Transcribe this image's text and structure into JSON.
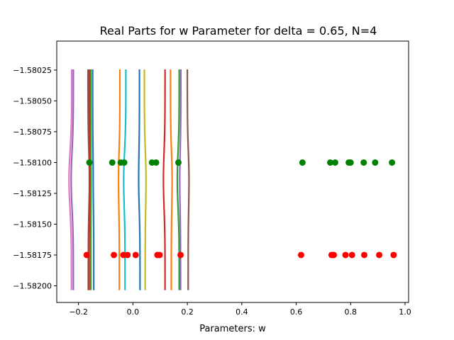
{
  "chart_data": {
    "type": "scatter",
    "title": "Real Parts for w Parameter for delta = 0.65, N=4",
    "xlabel": "Parameters: w",
    "ylabel": "",
    "xlim": [
      -0.28,
      1.013
    ],
    "ylim": [
      -1.582135,
      -1.580015
    ],
    "x_ticks": [
      -0.2,
      0.0,
      0.2,
      0.4,
      0.6,
      0.8,
      1.0
    ],
    "x_tick_labels": [
      "−0.2",
      "0.0",
      "0.2",
      "0.4",
      "0.6",
      "0.8",
      "1.0"
    ],
    "y_ticks": [
      -1.58025,
      -1.5805,
      -1.58075,
      -1.581,
      -1.58125,
      -1.5815,
      -1.58175,
      -1.582
    ],
    "y_tick_labels": [
      "−1.58025",
      "−1.58050",
      "−1.58075",
      "−1.58100",
      "−1.58125",
      "−1.58150",
      "−1.58175",
      "−1.58200"
    ],
    "grid": false,
    "legend": "none",
    "y_range_lines": [
      -1.582035,
      -1.580245
    ],
    "lines": [
      {
        "color": "#e377c2",
        "x_top": -0.225,
        "x_mid": -0.235,
        "x_bottom": -0.226
      },
      {
        "color": "#9467bd",
        "x_top": -0.219,
        "x_mid": -0.227,
        "x_bottom": -0.219
      },
      {
        "color": "#8c564b",
        "x_top": -0.165,
        "x_mid": -0.16,
        "x_bottom": -0.164
      },
      {
        "color": "#d62728",
        "x_top": -0.16,
        "x_mid": -0.158,
        "x_bottom": -0.161
      },
      {
        "color": "#2ca02c",
        "x_top": -0.155,
        "x_mid": -0.154,
        "x_bottom": -0.155
      },
      {
        "color": "#1f77b4",
        "x_top": -0.148,
        "x_mid": -0.146,
        "x_bottom": -0.144
      },
      {
        "color": "#ff7f0e",
        "x_top": -0.048,
        "x_mid": -0.053,
        "x_bottom": -0.05
      },
      {
        "color": "#17becf",
        "x_top": -0.026,
        "x_mid": -0.034,
        "x_bottom": -0.029
      },
      {
        "color": "#1f77b4",
        "x_top": 0.024,
        "x_mid": 0.021,
        "x_bottom": 0.026
      },
      {
        "color": "#bcbd22",
        "x_top": 0.042,
        "x_mid": 0.048,
        "x_bottom": 0.045
      },
      {
        "color": "#d62728",
        "x_top": 0.118,
        "x_mid": 0.112,
        "x_bottom": 0.118
      },
      {
        "color": "#ff7f0e",
        "x_top": 0.138,
        "x_mid": 0.144,
        "x_bottom": 0.141
      },
      {
        "color": "#2ca02c",
        "x_top": 0.17,
        "x_mid": 0.163,
        "x_bottom": 0.17
      },
      {
        "color": "#9467bd",
        "x_top": 0.176,
        "x_mid": 0.172,
        "x_bottom": 0.175
      },
      {
        "color": "#8c564b",
        "x_top": 0.2,
        "x_mid": 0.206,
        "x_bottom": 0.203
      }
    ],
    "series": [
      {
        "color": "#008000",
        "y": -1.581,
        "x": [
          -0.16,
          -0.076,
          -0.045,
          -0.032,
          0.07,
          0.085,
          0.167,
          0.623,
          0.725,
          0.743,
          0.793,
          0.8,
          0.848,
          0.89,
          0.952
        ]
      },
      {
        "color": "#ff0000",
        "y": -1.58175,
        "x": [
          -0.17,
          -0.07,
          -0.035,
          -0.02,
          0.01,
          0.09,
          0.098,
          0.175,
          0.618,
          0.73,
          0.738,
          0.781,
          0.805,
          0.85,
          0.905,
          0.958
        ]
      }
    ]
  }
}
